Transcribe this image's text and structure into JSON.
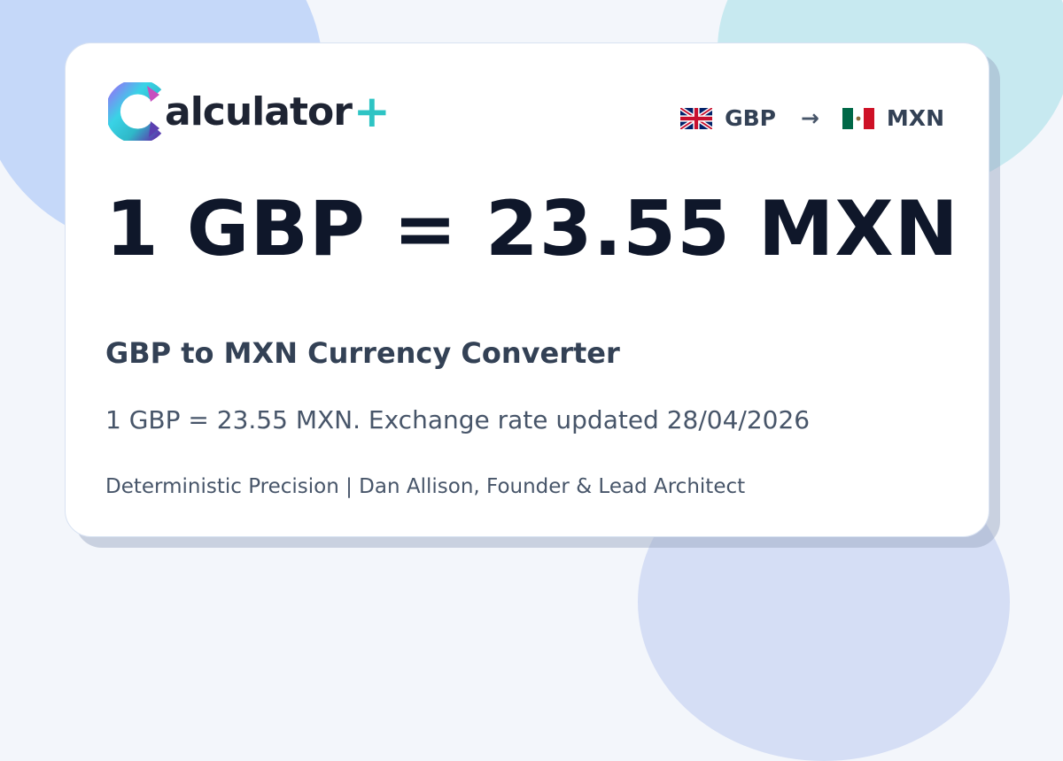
{
  "brand": {
    "name": "alculator",
    "plus": "+",
    "logo_letter": "C"
  },
  "pair": {
    "from": "GBP",
    "to": "MXN",
    "arrow": "→",
    "from_flag": "uk-flag-icon",
    "to_flag": "mexico-flag-icon"
  },
  "headline": "1 GBP = 23.55 MXN",
  "subtitle": "GBP to MXN Currency Converter",
  "description": "1 GBP = 23.55 MXN. Exchange rate updated 28/04/2026",
  "footer": "Deterministic Precision | Dan Allison, Founder & Lead Architect",
  "colors": {
    "accent": "#2ec4c4",
    "text_dark": "#0f172a",
    "text_mid": "#334155"
  }
}
